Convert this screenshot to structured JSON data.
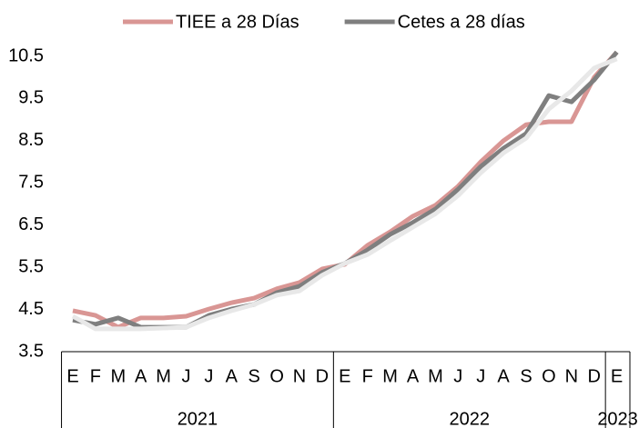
{
  "chart_data": {
    "type": "line",
    "categories": [
      "E",
      "F",
      "M",
      "A",
      "M",
      "J",
      "J",
      "A",
      "S",
      "O",
      "N",
      "D",
      "E",
      "F",
      "M",
      "A",
      "M",
      "J",
      "J",
      "A",
      "S",
      "O",
      "N",
      "D",
      "E"
    ],
    "years": [
      "2021",
      "2022",
      "2023"
    ],
    "series": [
      {
        "name": "TIEE a 28 Días",
        "color": "#d99694",
        "values": [
          4.47,
          4.36,
          4.08,
          4.3,
          4.3,
          4.34,
          4.51,
          4.66,
          4.77,
          4.99,
          5.14,
          5.46,
          5.57,
          6.02,
          6.34,
          6.71,
          6.97,
          7.42,
          8.0,
          8.5,
          8.88,
          8.95,
          8.95,
          10.0,
          10.6
        ]
      },
      {
        "name": "Cetes a 28 días",
        "color": "#7f7f7f",
        "values": [
          4.25,
          4.15,
          4.3,
          4.08,
          4.08,
          4.08,
          4.36,
          4.51,
          4.62,
          4.9,
          5.05,
          5.38,
          5.59,
          5.91,
          6.28,
          6.56,
          6.88,
          7.35,
          7.89,
          8.32,
          8.67,
          9.57,
          9.42,
          9.94,
          10.6
        ]
      },
      {
        "color": "#e8e8e8",
        "values": [
          4.34,
          4.04,
          4.04,
          4.04,
          4.06,
          4.08,
          4.3,
          4.47,
          4.62,
          4.84,
          4.94,
          5.31,
          5.59,
          5.8,
          6.13,
          6.45,
          6.77,
          7.2,
          7.74,
          8.21,
          8.56,
          9.25,
          9.68,
          10.22,
          10.44
        ]
      }
    ],
    "ylim": [
      3.5,
      10.5
    ],
    "yticks": [
      3.5,
      4.5,
      5.5,
      6.5,
      7.5,
      8.5,
      9.5,
      10.5
    ],
    "grid": false
  }
}
